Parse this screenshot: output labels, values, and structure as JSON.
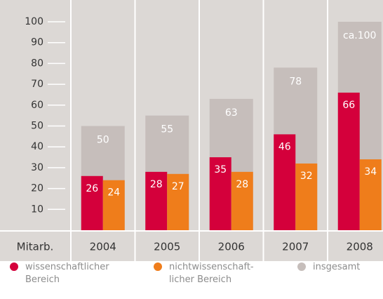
{
  "chart_data": {
    "type": "bar",
    "x_label": "Mitarb.",
    "categories": [
      "2004",
      "2005",
      "2006",
      "2007",
      "2008"
    ],
    "ylim": [
      0,
      100
    ],
    "yticks": [
      10,
      20,
      30,
      40,
      50,
      60,
      70,
      80,
      90,
      100
    ],
    "series": [
      {
        "name": "wissenschaftlicher\nBereich",
        "color": "#d4003b",
        "values": [
          26,
          28,
          35,
          46,
          66
        ]
      },
      {
        "name": "nichtwissenschaft-\nlicher Bereich",
        "color": "#ef7d1b",
        "values": [
          24,
          27,
          28,
          32,
          34
        ]
      },
      {
        "name": "insgesamt",
        "color": "#c6bebb",
        "values": [
          50,
          55,
          63,
          78,
          100
        ],
        "value_labels": [
          "50",
          "55",
          "63",
          "78",
          "ca.100"
        ]
      }
    ]
  }
}
